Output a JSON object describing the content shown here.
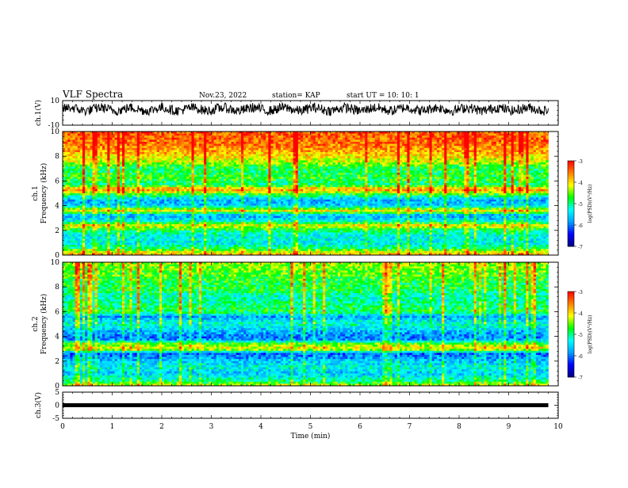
{
  "header": {
    "title": "VLF Spectra",
    "date": "Nov.23, 2022",
    "station": "station= KAP",
    "start": "start  UT =  10: 10: 1"
  },
  "chart_data": [
    {
      "type": "line",
      "panel": "ch1-waveform",
      "ylabel": "ch.1(V)",
      "ylim": [
        -10,
        10
      ],
      "yticks": [
        "10",
        "-10"
      ],
      "xlim": [
        0,
        10
      ],
      "series": [
        {
          "x_range": [
            0,
            9.8
          ],
          "baseline": 3,
          "noise_amplitude": 4,
          "color": "#000000"
        }
      ]
    },
    {
      "type": "heatmap",
      "panel": "ch1-spectrogram",
      "ylabel_top": "ch.1",
      "ylabel_bottom": "Frequency (kHz)",
      "ylim": [
        0,
        10
      ],
      "yticks": [
        "0",
        "2",
        "4",
        "6",
        "8",
        "10"
      ],
      "xlim": [
        0,
        10
      ],
      "x_data_range": [
        0,
        9.8
      ],
      "colorscale": [
        "#000080",
        "#0000ff",
        "#00a0ff",
        "#00ffff",
        "#00ff00",
        "#ffff00",
        "#ff8000",
        "#ff0000"
      ],
      "zlim": [
        -7,
        -3
      ],
      "zlabel": "log(PSD)(V²/Hz)",
      "zticks": [
        "-3",
        "-4",
        "-5",
        "-6",
        "-7"
      ],
      "freq_profile": [
        [
          0.0,
          -3.8
        ],
        [
          0.3,
          -4.3
        ],
        [
          0.6,
          -5.0
        ],
        [
          1.0,
          -5.4
        ],
        [
          1.6,
          -5.3
        ],
        [
          2.0,
          -4.9
        ],
        [
          2.4,
          -4.1
        ],
        [
          2.8,
          -5.4
        ],
        [
          3.2,
          -5.8
        ],
        [
          3.6,
          -4.0
        ],
        [
          4.0,
          -5.6
        ],
        [
          4.5,
          -5.7
        ],
        [
          5.0,
          -4.5
        ],
        [
          5.3,
          -3.6
        ],
        [
          5.7,
          -5.0
        ],
        [
          6.2,
          -4.7
        ],
        [
          7.0,
          -4.9
        ],
        [
          7.5,
          -4.3
        ],
        [
          8.0,
          -4.0
        ],
        [
          8.5,
          -3.7
        ],
        [
          9.0,
          -3.5
        ],
        [
          10.0,
          -3.4
        ]
      ]
    },
    {
      "type": "heatmap",
      "panel": "ch2-spectrogram",
      "ylabel_top": "ch.2",
      "ylabel_bottom": "Frequency (kHz)",
      "ylim": [
        0,
        10
      ],
      "yticks": [
        "0",
        "2",
        "4",
        "6",
        "8",
        "10"
      ],
      "xlim": [
        0,
        10
      ],
      "x_data_range": [
        0,
        9.8
      ],
      "colorscale": [
        "#000080",
        "#0000ff",
        "#00a0ff",
        "#00ffff",
        "#00ff00",
        "#ffff00",
        "#ff8000",
        "#ff0000"
      ],
      "zlim": [
        -7,
        -3
      ],
      "zlabel": "log(PSD)(V²/Hz)",
      "zticks": [
        "-3",
        "-4",
        "-5",
        "-6",
        "-7"
      ],
      "freq_profile": [
        [
          0.0,
          -4.2
        ],
        [
          0.4,
          -5.0
        ],
        [
          1.0,
          -5.6
        ],
        [
          1.5,
          -5.3
        ],
        [
          2.0,
          -5.6
        ],
        [
          2.6,
          -6.1
        ],
        [
          3.0,
          -4.0
        ],
        [
          3.4,
          -4.6
        ],
        [
          3.8,
          -6.0
        ],
        [
          4.4,
          -5.7
        ],
        [
          5.0,
          -5.2
        ],
        [
          5.6,
          -5.8
        ],
        [
          6.0,
          -4.8
        ],
        [
          6.6,
          -5.0
        ],
        [
          7.2,
          -5.2
        ],
        [
          7.8,
          -4.8
        ],
        [
          8.4,
          -4.8
        ],
        [
          9.0,
          -4.6
        ],
        [
          10.0,
          -4.4
        ]
      ]
    },
    {
      "type": "line",
      "panel": "ch3-waveform",
      "ylabel": "ch.3(V)",
      "ylim": [
        -5,
        5
      ],
      "yticks": [
        "5",
        "0",
        "-5"
      ],
      "xlim": [
        0,
        10
      ],
      "xlabel": "Time (min)",
      "xticks": [
        "0",
        "1",
        "2",
        "3",
        "4",
        "5",
        "6",
        "7",
        "8",
        "9",
        "10"
      ],
      "series": [
        {
          "x_range": [
            0,
            9.8
          ],
          "y": 0,
          "color": "#000000",
          "thick": true
        }
      ]
    }
  ]
}
